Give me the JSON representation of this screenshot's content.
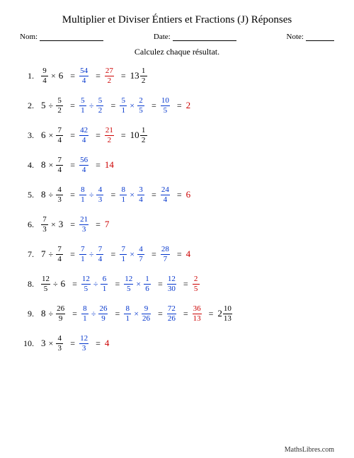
{
  "title": "Multiplier et Diviser Éntiers et Fractions (J) Réponses",
  "header": {
    "name_label": "Nom:",
    "date_label": "Date:",
    "note_label": "Note:",
    "name_line_w": 90,
    "date_line_w": 90,
    "note_line_w": 40
  },
  "instruction": "Calculez chaque résultat.",
  "footer": "MathsLibres.com",
  "style": {
    "blue": "#0033cc",
    "red": "#cc0000"
  },
  "rows": [
    {
      "n": "1.",
      "steps": [
        {
          "color": "black",
          "tokens": [
            {
              "t": "frac",
              "n": "9",
              "d": "4"
            },
            {
              "t": "op",
              "v": "×"
            },
            {
              "t": "whole",
              "v": "6"
            }
          ]
        },
        {
          "color": "blue",
          "tokens": [
            {
              "t": "frac",
              "n": "54",
              "d": "4"
            }
          ]
        },
        {
          "color": "red",
          "tokens": [
            {
              "t": "frac",
              "n": "27",
              "d": "2"
            }
          ]
        },
        {
          "color": "black",
          "tokens": [
            {
              "t": "mixed",
              "w": "13",
              "n": "1",
              "d": "2"
            }
          ]
        }
      ]
    },
    {
      "n": "2.",
      "steps": [
        {
          "color": "black",
          "tokens": [
            {
              "t": "whole",
              "v": "5"
            },
            {
              "t": "op",
              "v": "÷"
            },
            {
              "t": "frac",
              "n": "5",
              "d": "2"
            }
          ]
        },
        {
          "color": "blue",
          "tokens": [
            {
              "t": "frac",
              "n": "5",
              "d": "1"
            },
            {
              "t": "op",
              "v": "÷"
            },
            {
              "t": "frac",
              "n": "5",
              "d": "2"
            }
          ]
        },
        {
          "color": "blue",
          "tokens": [
            {
              "t": "frac",
              "n": "5",
              "d": "1"
            },
            {
              "t": "op",
              "v": "×"
            },
            {
              "t": "frac",
              "n": "2",
              "d": "5"
            }
          ]
        },
        {
          "color": "blue",
          "tokens": [
            {
              "t": "frac",
              "n": "10",
              "d": "5"
            }
          ]
        },
        {
          "color": "red",
          "tokens": [
            {
              "t": "whole",
              "v": "2"
            }
          ]
        }
      ]
    },
    {
      "n": "3.",
      "steps": [
        {
          "color": "black",
          "tokens": [
            {
              "t": "whole",
              "v": "6"
            },
            {
              "t": "op",
              "v": "×"
            },
            {
              "t": "frac",
              "n": "7",
              "d": "4"
            }
          ]
        },
        {
          "color": "blue",
          "tokens": [
            {
              "t": "frac",
              "n": "42",
              "d": "4"
            }
          ]
        },
        {
          "color": "red",
          "tokens": [
            {
              "t": "frac",
              "n": "21",
              "d": "2"
            }
          ]
        },
        {
          "color": "black",
          "tokens": [
            {
              "t": "mixed",
              "w": "10",
              "n": "1",
              "d": "2"
            }
          ]
        }
      ]
    },
    {
      "n": "4.",
      "steps": [
        {
          "color": "black",
          "tokens": [
            {
              "t": "whole",
              "v": "8"
            },
            {
              "t": "op",
              "v": "×"
            },
            {
              "t": "frac",
              "n": "7",
              "d": "4"
            }
          ]
        },
        {
          "color": "blue",
          "tokens": [
            {
              "t": "frac",
              "n": "56",
              "d": "4"
            }
          ]
        },
        {
          "color": "red",
          "tokens": [
            {
              "t": "whole",
              "v": "14"
            }
          ]
        }
      ]
    },
    {
      "n": "5.",
      "steps": [
        {
          "color": "black",
          "tokens": [
            {
              "t": "whole",
              "v": "8"
            },
            {
              "t": "op",
              "v": "÷"
            },
            {
              "t": "frac",
              "n": "4",
              "d": "3"
            }
          ]
        },
        {
          "color": "blue",
          "tokens": [
            {
              "t": "frac",
              "n": "8",
              "d": "1"
            },
            {
              "t": "op",
              "v": "÷"
            },
            {
              "t": "frac",
              "n": "4",
              "d": "3"
            }
          ]
        },
        {
          "color": "blue",
          "tokens": [
            {
              "t": "frac",
              "n": "8",
              "d": "1"
            },
            {
              "t": "op",
              "v": "×"
            },
            {
              "t": "frac",
              "n": "3",
              "d": "4"
            }
          ]
        },
        {
          "color": "blue",
          "tokens": [
            {
              "t": "frac",
              "n": "24",
              "d": "4"
            }
          ]
        },
        {
          "color": "red",
          "tokens": [
            {
              "t": "whole",
              "v": "6"
            }
          ]
        }
      ]
    },
    {
      "n": "6.",
      "steps": [
        {
          "color": "black",
          "tokens": [
            {
              "t": "frac",
              "n": "7",
              "d": "3"
            },
            {
              "t": "op",
              "v": "×"
            },
            {
              "t": "whole",
              "v": "3"
            }
          ]
        },
        {
          "color": "blue",
          "tokens": [
            {
              "t": "frac",
              "n": "21",
              "d": "3"
            }
          ]
        },
        {
          "color": "red",
          "tokens": [
            {
              "t": "whole",
              "v": "7"
            }
          ]
        }
      ]
    },
    {
      "n": "7.",
      "steps": [
        {
          "color": "black",
          "tokens": [
            {
              "t": "whole",
              "v": "7"
            },
            {
              "t": "op",
              "v": "÷"
            },
            {
              "t": "frac",
              "n": "7",
              "d": "4"
            }
          ]
        },
        {
          "color": "blue",
          "tokens": [
            {
              "t": "frac",
              "n": "7",
              "d": "1"
            },
            {
              "t": "op",
              "v": "÷"
            },
            {
              "t": "frac",
              "n": "7",
              "d": "4"
            }
          ]
        },
        {
          "color": "blue",
          "tokens": [
            {
              "t": "frac",
              "n": "7",
              "d": "1"
            },
            {
              "t": "op",
              "v": "×"
            },
            {
              "t": "frac",
              "n": "4",
              "d": "7"
            }
          ]
        },
        {
          "color": "blue",
          "tokens": [
            {
              "t": "frac",
              "n": "28",
              "d": "7"
            }
          ]
        },
        {
          "color": "red",
          "tokens": [
            {
              "t": "whole",
              "v": "4"
            }
          ]
        }
      ]
    },
    {
      "n": "8.",
      "steps": [
        {
          "color": "black",
          "tokens": [
            {
              "t": "frac",
              "n": "12",
              "d": "5"
            },
            {
              "t": "op",
              "v": "÷"
            },
            {
              "t": "whole",
              "v": "6"
            }
          ]
        },
        {
          "color": "blue",
          "tokens": [
            {
              "t": "frac",
              "n": "12",
              "d": "5"
            },
            {
              "t": "op",
              "v": "÷"
            },
            {
              "t": "frac",
              "n": "6",
              "d": "1"
            }
          ]
        },
        {
          "color": "blue",
          "tokens": [
            {
              "t": "frac",
              "n": "12",
              "d": "5"
            },
            {
              "t": "op",
              "v": "×"
            },
            {
              "t": "frac",
              "n": "1",
              "d": "6"
            }
          ]
        },
        {
          "color": "blue",
          "tokens": [
            {
              "t": "frac",
              "n": "12",
              "d": "30"
            }
          ]
        },
        {
          "color": "red",
          "tokens": [
            {
              "t": "frac",
              "n": "2",
              "d": "5"
            }
          ]
        }
      ]
    },
    {
      "n": "9.",
      "steps": [
        {
          "color": "black",
          "tokens": [
            {
              "t": "whole",
              "v": "8"
            },
            {
              "t": "op",
              "v": "÷"
            },
            {
              "t": "frac",
              "n": "26",
              "d": "9"
            }
          ]
        },
        {
          "color": "blue",
          "tokens": [
            {
              "t": "frac",
              "n": "8",
              "d": "1"
            },
            {
              "t": "op",
              "v": "÷"
            },
            {
              "t": "frac",
              "n": "26",
              "d": "9"
            }
          ]
        },
        {
          "color": "blue",
          "tokens": [
            {
              "t": "frac",
              "n": "8",
              "d": "1"
            },
            {
              "t": "op",
              "v": "×"
            },
            {
              "t": "frac",
              "n": "9",
              "d": "26"
            }
          ]
        },
        {
          "color": "blue",
          "tokens": [
            {
              "t": "frac",
              "n": "72",
              "d": "26"
            }
          ]
        },
        {
          "color": "red",
          "tokens": [
            {
              "t": "frac",
              "n": "36",
              "d": "13"
            }
          ]
        },
        {
          "color": "black",
          "tokens": [
            {
              "t": "mixed",
              "w": "2",
              "n": "10",
              "d": "13"
            }
          ]
        }
      ]
    },
    {
      "n": "10.",
      "steps": [
        {
          "color": "black",
          "tokens": [
            {
              "t": "whole",
              "v": "3"
            },
            {
              "t": "op",
              "v": "×"
            },
            {
              "t": "frac",
              "n": "4",
              "d": "3"
            }
          ]
        },
        {
          "color": "blue",
          "tokens": [
            {
              "t": "frac",
              "n": "12",
              "d": "3"
            }
          ]
        },
        {
          "color": "red",
          "tokens": [
            {
              "t": "whole",
              "v": "4"
            }
          ]
        }
      ]
    }
  ]
}
